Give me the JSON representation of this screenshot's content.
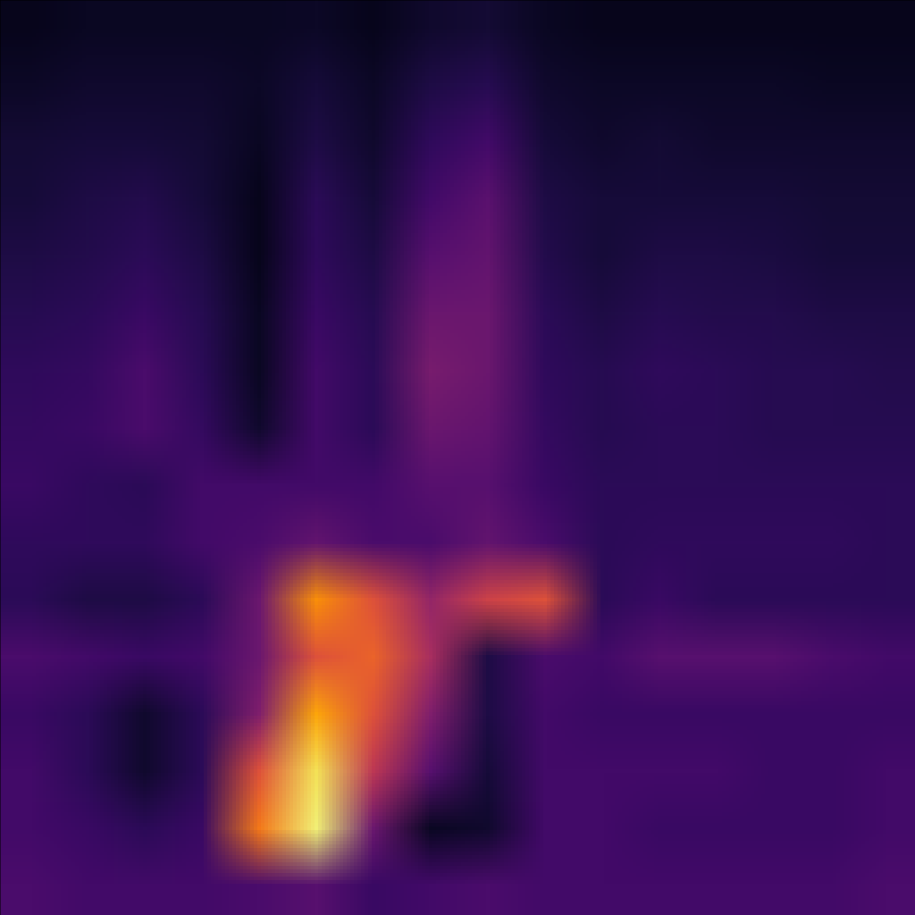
{
  "chart_data": {
    "type": "heatmap",
    "color": "inferno",
    "tick_labels": false,
    "color_range": [
      0,
      1
    ],
    "cells": [
      [
        0.22,
        0.2,
        0.2,
        0.2,
        0.22,
        0.25,
        0.18,
        0.2,
        0.22,
        0.2,
        0.2,
        0.2,
        0.2,
        0.2,
        0.2,
        0.22
      ],
      [
        0.2,
        0.18,
        0.15,
        0.18,
        0.7,
        0.95,
        0.3,
        0.06,
        0.08,
        0.2,
        0.2,
        0.18,
        0.18,
        0.18,
        0.18,
        0.2
      ],
      [
        0.2,
        0.15,
        0.08,
        0.15,
        0.6,
        0.92,
        0.5,
        0.25,
        0.1,
        0.2,
        0.2,
        0.2,
        0.2,
        0.18,
        0.18,
        0.2
      ],
      [
        0.18,
        0.15,
        0.08,
        0.15,
        0.35,
        0.8,
        0.6,
        0.35,
        0.12,
        0.2,
        0.18,
        0.18,
        0.18,
        0.18,
        0.18,
        0.18
      ],
      [
        0.22,
        0.2,
        0.18,
        0.2,
        0.3,
        0.6,
        0.65,
        0.45,
        0.12,
        0.22,
        0.2,
        0.25,
        0.25,
        0.25,
        0.22,
        0.2
      ],
      [
        0.15,
        0.12,
        0.12,
        0.15,
        0.3,
        0.75,
        0.6,
        0.4,
        0.55,
        0.6,
        0.15,
        0.18,
        0.15,
        0.15,
        0.15,
        0.15
      ],
      [
        0.16,
        0.16,
        0.16,
        0.2,
        0.22,
        0.28,
        0.22,
        0.22,
        0.28,
        0.22,
        0.15,
        0.16,
        0.16,
        0.16,
        0.16,
        0.15
      ],
      [
        0.18,
        0.16,
        0.15,
        0.2,
        0.2,
        0.2,
        0.2,
        0.25,
        0.25,
        0.18,
        0.15,
        0.15,
        0.15,
        0.15,
        0.15,
        0.15
      ],
      [
        0.17,
        0.18,
        0.22,
        0.17,
        0.08,
        0.2,
        0.15,
        0.3,
        0.28,
        0.17,
        0.14,
        0.15,
        0.15,
        0.14,
        0.14,
        0.14
      ],
      [
        0.16,
        0.17,
        0.22,
        0.15,
        0.06,
        0.2,
        0.15,
        0.33,
        0.3,
        0.16,
        0.14,
        0.16,
        0.15,
        0.14,
        0.14,
        0.13
      ],
      [
        0.14,
        0.15,
        0.18,
        0.14,
        0.06,
        0.18,
        0.14,
        0.3,
        0.3,
        0.15,
        0.12,
        0.14,
        0.13,
        0.13,
        0.12,
        0.12
      ],
      [
        0.12,
        0.13,
        0.15,
        0.12,
        0.05,
        0.16,
        0.12,
        0.25,
        0.28,
        0.13,
        0.1,
        0.12,
        0.12,
        0.11,
        0.1,
        0.1
      ],
      [
        0.1,
        0.12,
        0.13,
        0.1,
        0.05,
        0.15,
        0.1,
        0.2,
        0.26,
        0.12,
        0.1,
        0.1,
        0.1,
        0.1,
        0.09,
        0.09
      ],
      [
        0.09,
        0.1,
        0.1,
        0.09,
        0.06,
        0.12,
        0.08,
        0.16,
        0.2,
        0.1,
        0.08,
        0.09,
        0.08,
        0.08,
        0.08,
        0.08
      ],
      [
        0.07,
        0.08,
        0.08,
        0.08,
        0.07,
        0.1,
        0.07,
        0.12,
        0.14,
        0.08,
        0.07,
        0.07,
        0.07,
        0.07,
        0.06,
        0.06
      ],
      [
        0.05,
        0.06,
        0.06,
        0.06,
        0.06,
        0.07,
        0.05,
        0.08,
        0.09,
        0.06,
        0.05,
        0.05,
        0.05,
        0.05,
        0.05,
        0.05
      ]
    ]
  }
}
